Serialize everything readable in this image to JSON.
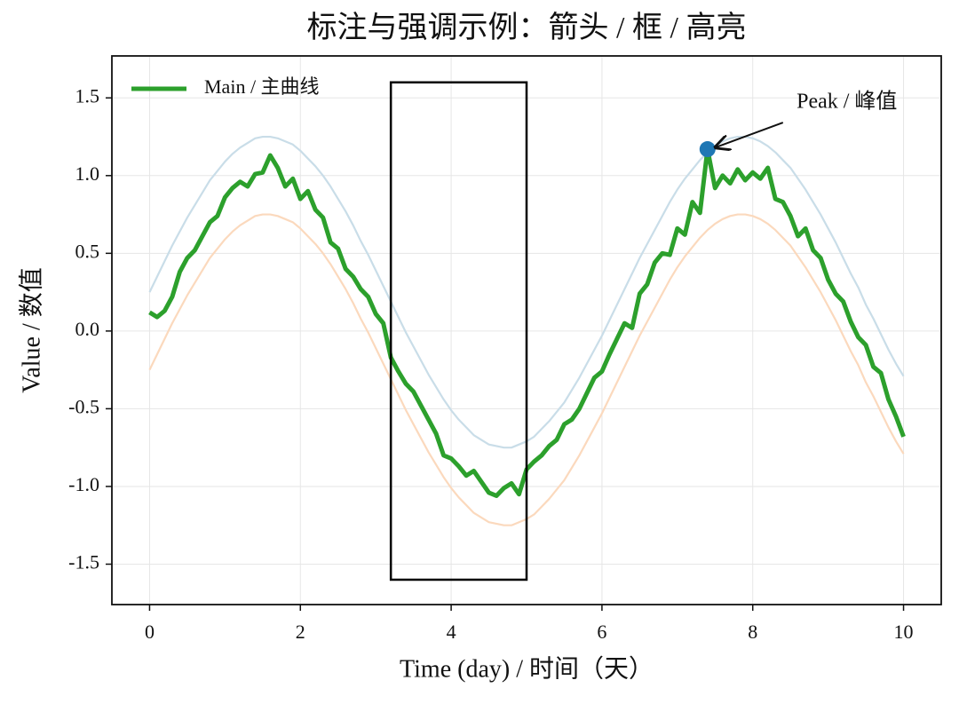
{
  "chart_data": {
    "type": "line",
    "title": "标注与强调示例：箭头 / 框 / 高亮",
    "xlabel": "Time (day) / 时间（天）",
    "ylabel": "Value / 数值",
    "xlim": [
      -0.5,
      10.5
    ],
    "ylim": [
      -1.76,
      1.77
    ],
    "xticks": [
      0,
      2,
      4,
      6,
      8,
      10
    ],
    "yticks": [
      -1.5,
      {
        "value": -1,
        "label": "-1.0"
      },
      -0.5,
      {
        "value": 0,
        "label": "0.0"
      },
      0.5,
      {
        "value": 1,
        "label": "1.0"
      },
      1.5
    ],
    "grid": true,
    "legend": "upper left",
    "x": [
      0,
      0.1,
      0.2,
      0.3,
      0.4,
      0.5,
      0.6,
      0.7,
      0.8,
      0.9,
      1,
      1.1,
      1.2,
      1.3,
      1.4,
      1.5,
      1.6,
      1.7,
      1.8,
      1.9,
      2,
      2.1,
      2.2,
      2.3,
      2.4,
      2.5,
      2.6,
      2.7,
      2.8,
      2.9,
      3,
      3.1,
      3.2,
      3.3,
      3.4,
      3.5,
      3.6,
      3.7,
      3.8,
      3.9,
      4,
      4.1,
      4.2,
      4.3,
      4.4,
      4.5,
      4.6,
      4.7,
      4.8,
      4.9,
      5,
      5.1,
      5.2,
      5.3,
      5.4,
      5.5,
      5.6,
      5.7,
      5.8,
      5.9,
      6,
      6.1,
      6.2,
      6.3,
      6.4,
      6.5,
      6.6,
      6.7,
      6.8,
      6.9,
      7,
      7.1,
      7.2,
      7.3,
      7.4,
      7.5,
      7.6,
      7.7,
      7.8,
      7.9,
      8,
      8.1,
      8.2,
      8.3,
      8.4,
      8.5,
      8.6,
      8.7,
      8.8,
      8.9,
      9,
      9.1,
      9.2,
      9.3,
      9.4,
      9.5,
      9.6,
      9.7,
      9.8,
      9.9,
      10
    ],
    "series": [
      {
        "color": "#c9dde8",
        "values": [
          0.25,
          0.35,
          0.45,
          0.55,
          0.64,
          0.73,
          0.81,
          0.89,
          0.97,
          1.03,
          1.09,
          1.14,
          1.18,
          1.21,
          1.24,
          1.25,
          1.25,
          1.24,
          1.22,
          1.2,
          1.16,
          1.11,
          1.06,
          1.0,
          0.93,
          0.85,
          0.77,
          0.68,
          0.58,
          0.49,
          0.39,
          0.29,
          0.19,
          0.09,
          -0.01,
          -0.1,
          -0.19,
          -0.28,
          -0.36,
          -0.44,
          -0.51,
          -0.57,
          -0.62,
          -0.67,
          -0.7,
          -0.73,
          -0.74,
          -0.75,
          -0.75,
          -0.73,
          -0.71,
          -0.68,
          -0.63,
          -0.58,
          -0.52,
          -0.46,
          -0.38,
          -0.3,
          -0.21,
          -0.12,
          -0.03,
          0.07,
          0.17,
          0.27,
          0.37,
          0.47,
          0.56,
          0.65,
          0.74,
          0.83,
          0.91,
          0.98,
          1.04,
          1.1,
          1.15,
          1.19,
          1.22,
          1.24,
          1.25,
          1.25,
          1.24,
          1.22,
          1.19,
          1.15,
          1.1,
          1.05,
          0.98,
          0.91,
          0.83,
          0.75,
          0.66,
          0.57,
          0.47,
          0.37,
          0.28,
          0.17,
          0.08,
          -0.02,
          -0.12,
          -0.21,
          -0.29
        ]
      },
      {
        "color": "#fbd9bd",
        "values": [
          -0.25,
          -0.15,
          -0.05,
          0.05,
          0.14,
          0.23,
          0.31,
          0.39,
          0.47,
          0.53,
          0.59,
          0.64,
          0.68,
          0.71,
          0.74,
          0.75,
          0.75,
          0.74,
          0.72,
          0.7,
          0.66,
          0.61,
          0.56,
          0.5,
          0.43,
          0.35,
          0.27,
          0.18,
          0.08,
          -0.01,
          -0.11,
          -0.21,
          -0.31,
          -0.41,
          -0.51,
          -0.6,
          -0.69,
          -0.78,
          -0.86,
          -0.94,
          -1.01,
          -1.07,
          -1.12,
          -1.17,
          -1.2,
          -1.23,
          -1.24,
          -1.25,
          -1.25,
          -1.23,
          -1.21,
          -1.18,
          -1.13,
          -1.08,
          -1.02,
          -0.96,
          -0.88,
          -0.8,
          -0.71,
          -0.62,
          -0.53,
          -0.43,
          -0.33,
          -0.23,
          -0.13,
          -0.03,
          0.06,
          0.15,
          0.24,
          0.33,
          0.41,
          0.48,
          0.54,
          0.6,
          0.65,
          0.69,
          0.72,
          0.74,
          0.75,
          0.75,
          0.74,
          0.72,
          0.69,
          0.65,
          0.6,
          0.55,
          0.48,
          0.41,
          0.33,
          0.25,
          0.16,
          0.07,
          -0.03,
          -0.13,
          -0.22,
          -0.33,
          -0.42,
          -0.52,
          -0.62,
          -0.71,
          -0.79
        ]
      },
      {
        "name": "Main / 主曲线",
        "color": "#2ca02c",
        "values": [
          0.12,
          0.09,
          0.13,
          0.22,
          0.38,
          0.47,
          0.52,
          0.61,
          0.7,
          0.74,
          0.86,
          0.92,
          0.96,
          0.93,
          1.01,
          1.02,
          1.13,
          1.05,
          0.93,
          0.98,
          0.85,
          0.9,
          0.78,
          0.73,
          0.57,
          0.53,
          0.4,
          0.35,
          0.27,
          0.22,
          0.11,
          0.05,
          -0.17,
          -0.26,
          -0.34,
          -0.39,
          -0.48,
          -0.57,
          -0.66,
          -0.8,
          -0.82,
          -0.87,
          -0.93,
          -0.9,
          -0.97,
          -1.04,
          -1.06,
          -1.01,
          -0.98,
          -1.05,
          -0.89,
          -0.84,
          -0.8,
          -0.74,
          -0.7,
          -0.6,
          -0.57,
          -0.5,
          -0.4,
          -0.3,
          -0.26,
          -0.15,
          -0.05,
          0.05,
          0.02,
          0.24,
          0.3,
          0.44,
          0.5,
          0.49,
          0.66,
          0.62,
          0.83,
          0.76,
          1.17,
          0.92,
          1.0,
          0.95,
          1.04,
          0.97,
          1.02,
          0.98,
          1.05,
          0.85,
          0.83,
          0.74,
          0.61,
          0.66,
          0.52,
          0.47,
          0.33,
          0.24,
          0.19,
          0.06,
          -0.04,
          -0.09,
          -0.23,
          -0.27,
          -0.44,
          -0.55,
          -0.68
        ]
      }
    ],
    "highlight_box": {
      "xlim": [
        3.2,
        5.0
      ],
      "ylim": [
        -1.6,
        1.6
      ],
      "color": "#000000"
    },
    "annotation": {
      "text": "Peak / 峰值",
      "x": 7.4,
      "y": 1.17,
      "color": "#1f77b4"
    }
  }
}
